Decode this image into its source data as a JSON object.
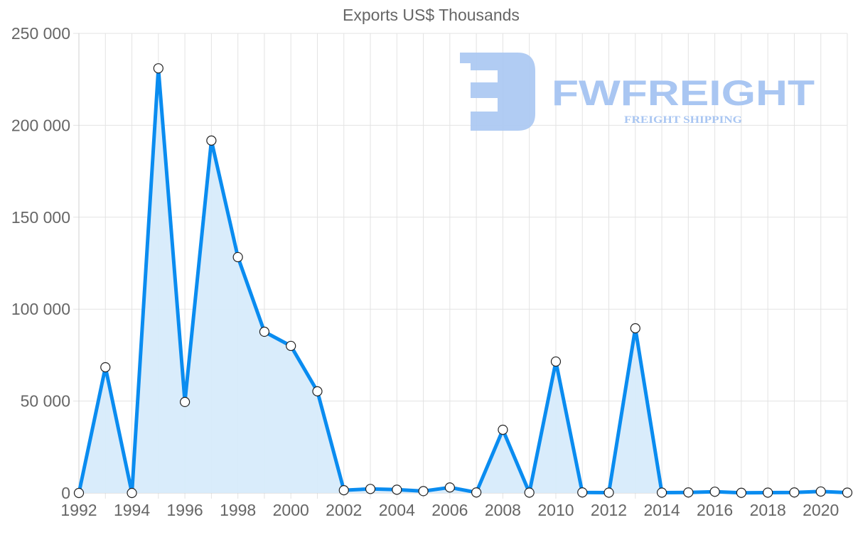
{
  "chart_data": {
    "type": "area",
    "title": "Exports US$ Thousands",
    "xlabel": "",
    "ylabel": "",
    "x": [
      1992,
      1993,
      1994,
      1995,
      1996,
      1997,
      1998,
      1999,
      2000,
      2001,
      2002,
      2003,
      2004,
      2005,
      2006,
      2007,
      2008,
      2009,
      2010,
      2011,
      2012,
      2013,
      2014,
      2015,
      2016,
      2017,
      2018,
      2019,
      2020,
      2021
    ],
    "series": [
      {
        "name": "Exports US$ Thousands",
        "values": [
          0,
          68400,
          0,
          231000,
          49500,
          191700,
          128300,
          87700,
          80000,
          55300,
          1500,
          2200,
          1800,
          1000,
          3000,
          300,
          34400,
          200,
          71500,
          300,
          200,
          89600,
          200,
          300,
          700,
          100,
          200,
          300,
          800,
          200
        ],
        "color": "#0a8cf0",
        "fill": "#d7ebfb"
      }
    ],
    "ylim": [
      0,
      250000
    ],
    "yticks": [
      0,
      50000,
      100000,
      150000,
      200000,
      250000
    ],
    "ytick_labels": [
      "0",
      "50 000",
      "100 000",
      "150 000",
      "200 000",
      "250 000"
    ],
    "xtick_labels": [
      "1992",
      "1994",
      "1996",
      "1998",
      "2000",
      "2002",
      "2004",
      "2006",
      "2008",
      "2010",
      "2012",
      "2014",
      "2016",
      "2018",
      "2020"
    ],
    "grid": true,
    "legend": "none"
  },
  "watermark": {
    "brand": "FWFREIGHT",
    "tagline": "FREIGHT SHIPPING",
    "color": "#a9c6f2"
  }
}
